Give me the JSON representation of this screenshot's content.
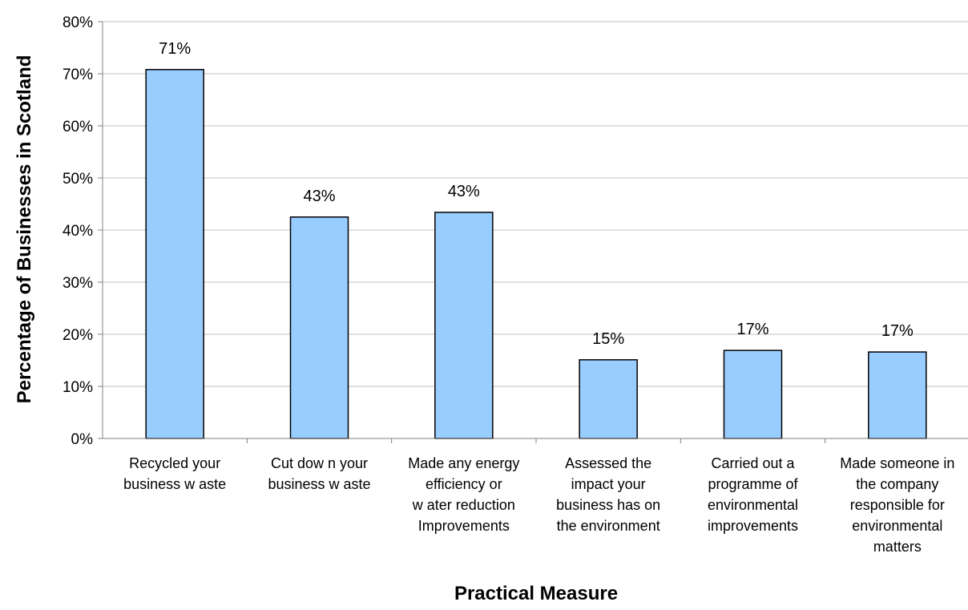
{
  "chart_data": {
    "type": "bar",
    "title": "",
    "xlabel": "Practical Measure",
    "ylabel": "Percentage of Businesses in Scotland",
    "ylim": [
      0,
      80
    ],
    "yticks": [
      "0%",
      "10%",
      "20%",
      "30%",
      "40%",
      "50%",
      "60%",
      "70%",
      "80%"
    ],
    "grid": true,
    "bar_color": "#99CCFF",
    "categories": [
      [
        "Recycled your",
        "business w aste"
      ],
      [
        "Cut dow n your",
        "business w aste"
      ],
      [
        "Made any energy",
        "efficiency or",
        "w ater reduction",
        "Improvements"
      ],
      [
        "Assessed the",
        "impact your",
        "business has on",
        "the environment"
      ],
      [
        "Carried out a",
        "programme of",
        "environmental",
        "improvements"
      ],
      [
        "Made someone in",
        "the company",
        "responsible for",
        "environmental",
        "matters"
      ]
    ],
    "values": [
      70.8,
      42.5,
      43.4,
      15.1,
      16.9,
      16.6
    ],
    "data_labels": [
      "71%",
      "43%",
      "43%",
      "15%",
      "17%",
      "17%"
    ]
  }
}
